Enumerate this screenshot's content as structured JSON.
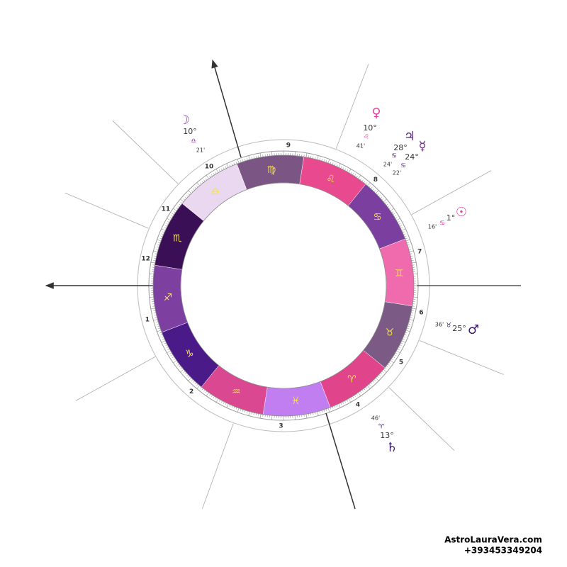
{
  "wheel": {
    "signs": [
      {
        "glyph": "♈",
        "color": "#e0458b"
      },
      {
        "glyph": "♉",
        "color": "#7b5a86"
      },
      {
        "glyph": "♊",
        "color": "#f06aae"
      },
      {
        "glyph": "♋",
        "color": "#7b3fa0"
      },
      {
        "glyph": "♌",
        "color": "#e94a8f"
      },
      {
        "glyph": "♍",
        "color": "#7b5584"
      },
      {
        "glyph": "♎",
        "color": "#ead8f0"
      },
      {
        "glyph": "♏",
        "color": "#3a0f55"
      },
      {
        "glyph": "♐",
        "color": "#7d3fa0"
      },
      {
        "glyph": "♑",
        "color": "#4a1a88"
      },
      {
        "glyph": "♒",
        "color": "#d94890"
      },
      {
        "glyph": "♓",
        "color": "#c07ef0"
      }
    ],
    "houses": [
      "1",
      "2",
      "3",
      "4",
      "5",
      "6",
      "7",
      "8",
      "9",
      "10",
      "11",
      "12"
    ]
  },
  "planets": [
    {
      "glyph": "☽",
      "degree": "10°",
      "sign": "♎",
      "minutes": "21'",
      "color": "#8a4aa0"
    },
    {
      "glyph": "♀",
      "degree": "10°",
      "sign": "♌",
      "minutes": "41'",
      "color": "#e040a0"
    },
    {
      "glyph": "♃",
      "degree": "28°",
      "sign": "♋",
      "minutes": "24'",
      "color": "#5a2a80"
    },
    {
      "glyph": "☿",
      "degree": "24°",
      "sign": "♋",
      "minutes": "22'",
      "color": "#6a2a90"
    },
    {
      "glyph": "☉",
      "degree": "1°",
      "sign": "♋",
      "minutes": "16'",
      "color": "#d43a98"
    },
    {
      "glyph": "♂",
      "degree": "25°",
      "sign": "♉",
      "minutes": "36'",
      "color": "#3a1a6a"
    },
    {
      "glyph": "♄",
      "degree": "13°",
      "sign": "♈",
      "minutes": "46'",
      "color": "#3a1a6a"
    }
  ],
  "footer": {
    "site": "AstroLauraVera.com",
    "phone": "+393453349204"
  }
}
